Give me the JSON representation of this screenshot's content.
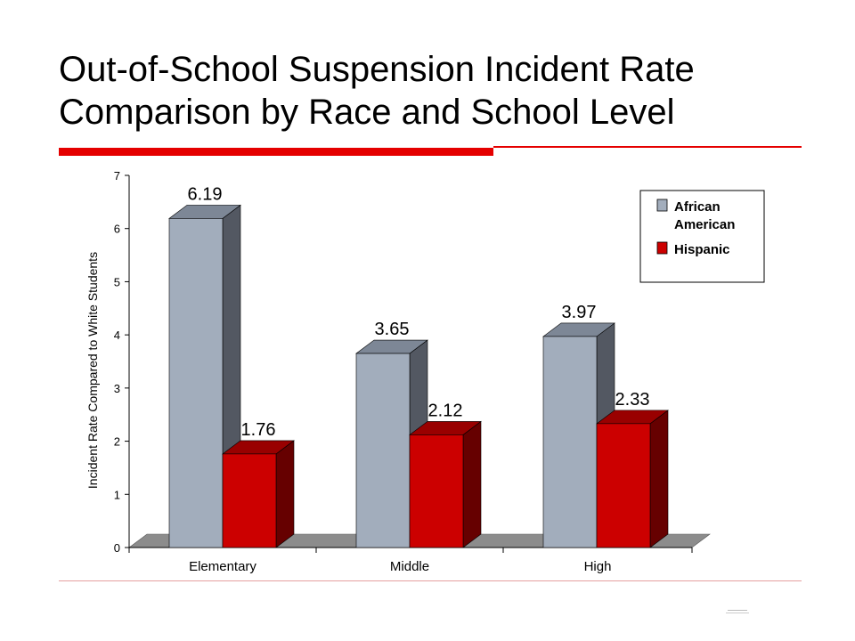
{
  "slide": {
    "title": "Out-of-School Suspension Incident Rate Comparison by Race and School Level"
  },
  "colors": {
    "accent": "#e50000",
    "series_african_american": "#a2adbc",
    "series_hispanic": "#cc0000"
  },
  "chart_data": {
    "type": "bar",
    "style": "3d-clustered-column",
    "categories": [
      "Elementary",
      "Middle",
      "High"
    ],
    "series": [
      {
        "name": "African American",
        "values": [
          6.19,
          3.65,
          3.97
        ],
        "labels": [
          "6.19",
          "3.65",
          "3.97"
        ]
      },
      {
        "name": "Hispanic",
        "values": [
          1.76,
          2.12,
          2.33
        ],
        "labels": [
          "1.76",
          "2.12",
          "2.33"
        ]
      }
    ],
    "ylabel": "Incident Rate Compared to White Students",
    "xlabel": "",
    "ylim": [
      0,
      7
    ],
    "yticks": [
      "0",
      "1",
      "2",
      "3",
      "4",
      "5",
      "6",
      "7"
    ],
    "grid": false,
    "legend": {
      "position": "top-right",
      "entries": [
        "African American",
        "Hispanic"
      ]
    }
  }
}
